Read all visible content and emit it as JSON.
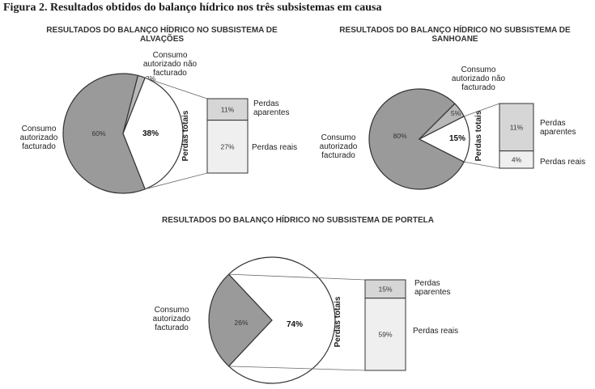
{
  "figure_title": "Figura 2. Resultados obtidos do balanço hídrico nos três subsistemas em causa",
  "colors": {
    "billed": "#9a9a9a",
    "unbilled": "#b8b8b8",
    "apparent": "#d6d6d6",
    "real": "#efefef",
    "losses": "#ffffff",
    "stroke": "#333333"
  },
  "chart_data": [
    {
      "type": "pie",
      "title_lines": [
        "RESULTADOS DO BALANÇO HÍDRICO NO SUBSISTEMA DE",
        "ALVAÇÕES"
      ],
      "slices": [
        {
          "label_lines": [
            "Consumo",
            "autorizado",
            "facturado"
          ],
          "value": 60,
          "value_label": "60%"
        },
        {
          "label_lines": [
            "Consumo",
            "autorizado não",
            "facturado"
          ],
          "value": 2,
          "value_label": "2%"
        },
        {
          "label_lines": [],
          "value": 38,
          "value_label": "38%"
        }
      ],
      "losses_axis_label": "Perdas totais",
      "losses_breakdown": [
        {
          "label_lines": [
            "Perdas",
            "aparentes"
          ],
          "value": 11,
          "value_label": "11%"
        },
        {
          "label_lines": [
            "Perdas reais"
          ],
          "value": 27,
          "value_label": "27%"
        }
      ]
    },
    {
      "type": "pie",
      "title_lines": [
        "RESULTADOS DO BALANÇO HÍDRICO NO SUBSISTEMA DE",
        "SANHOANE"
      ],
      "slices": [
        {
          "label_lines": [
            "Consumo",
            "autorizado",
            "facturado"
          ],
          "value": 80,
          "value_label": "80%"
        },
        {
          "label_lines": [
            "Consumo",
            "autorizado não",
            "facturado"
          ],
          "value": 5,
          "value_label": "5%"
        },
        {
          "label_lines": [],
          "value": 15,
          "value_label": "15%"
        }
      ],
      "losses_axis_label": "Perdas totais",
      "losses_breakdown": [
        {
          "label_lines": [
            "Perdas",
            "aparentes"
          ],
          "value": 11,
          "value_label": "11%"
        },
        {
          "label_lines": [
            "Perdas reais"
          ],
          "value": 4,
          "value_label": "4%"
        }
      ]
    },
    {
      "type": "pie",
      "title_lines": [
        "RESULTADOS DO BALANÇO HÍDRICO NO SUBSISTEMA DE PORTELA"
      ],
      "slices": [
        {
          "label_lines": [
            "Consumo",
            "autorizado",
            "facturado"
          ],
          "value": 26,
          "value_label": "26%"
        },
        {
          "label_lines": [],
          "value": 74,
          "value_label": "74%"
        }
      ],
      "losses_axis_label": "Perdas totais",
      "losses_breakdown": [
        {
          "label_lines": [
            "Perdas",
            "aparentes"
          ],
          "value": 15,
          "value_label": "15%"
        },
        {
          "label_lines": [
            "Perdas reais"
          ],
          "value": 59,
          "value_label": "59%"
        }
      ]
    }
  ]
}
